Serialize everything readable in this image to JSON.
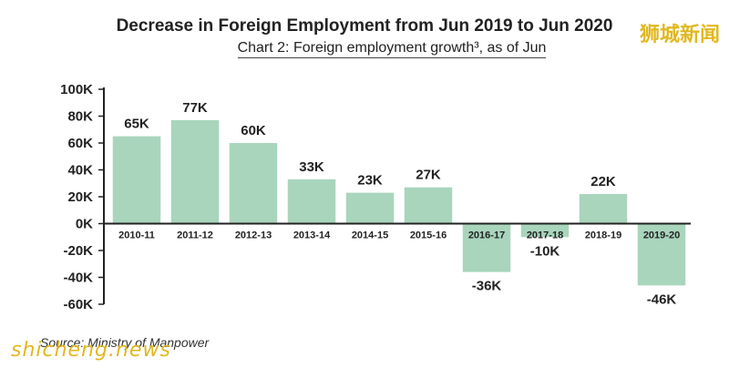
{
  "title": "Decrease in Foreign Employment from Jun 2019 to Jun 2020",
  "subtitle": "Chart 2: Foreign employment growth³, as of Jun",
  "source": "Source: Ministry of Manpower",
  "watermark_top": "狮城新闻",
  "watermark_bottom": "shicheng.news",
  "chart_data": {
    "type": "bar",
    "categories": [
      "2010-11",
      "2011-12",
      "2012-13",
      "2013-14",
      "2014-15",
      "2015-16",
      "2016-17",
      "2017-18",
      "2018-19",
      "2019-20"
    ],
    "values": [
      65,
      77,
      60,
      33,
      23,
      27,
      -36,
      -10,
      22,
      -46
    ],
    "value_labels": [
      "65K",
      "77K",
      "60K",
      "33K",
      "23K",
      "27K",
      "-36K",
      "-10K",
      "22K",
      "-46K"
    ],
    "unit": "K",
    "ylim": [
      -60,
      100
    ],
    "yticks": [
      100,
      80,
      60,
      40,
      20,
      0,
      -20,
      -40,
      -60
    ],
    "ytick_labels": [
      "100K",
      "80K",
      "60K",
      "40K",
      "20K",
      "0K",
      "-20K",
      "-40K",
      "-60K"
    ],
    "bar_color": "#a8d5bc",
    "xlabel": "",
    "ylabel": "",
    "grid": false
  }
}
